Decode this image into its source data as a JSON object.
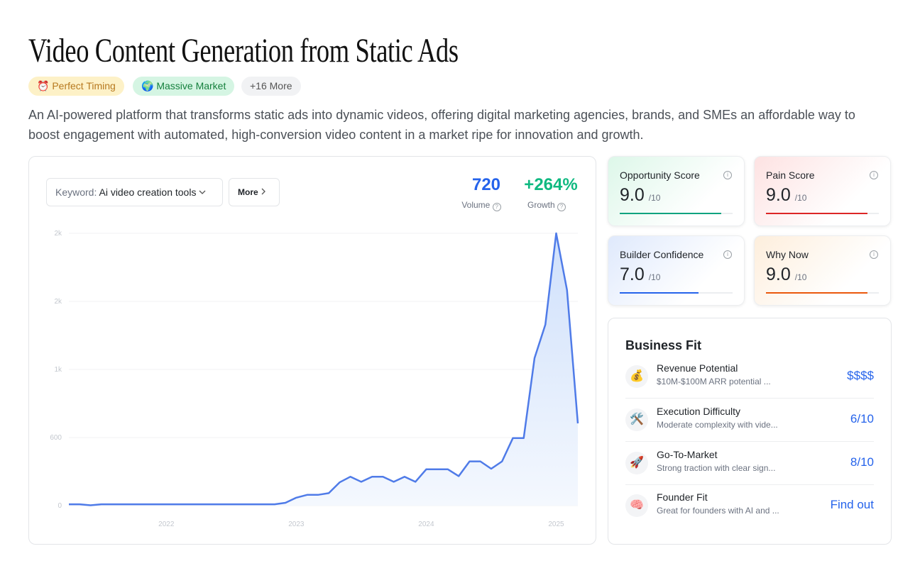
{
  "header": {
    "title": "Video Content Generation from Static Ads",
    "tags": [
      {
        "icon": "⏰",
        "label": "Perfect Timing"
      },
      {
        "icon": "🌍",
        "label": "Massive Market"
      },
      {
        "label": "+16 More"
      }
    ],
    "description": "An AI-powered platform that transforms static ads into dynamic videos, offering digital marketing agencies, brands, and SMEs an affordable way to boost engagement with automated, high-conversion video content in a market ripe for innovation and growth."
  },
  "controls": {
    "keyword_label": "Keyword:",
    "keyword_value": "Ai video creation tools",
    "more_button": "More"
  },
  "metrics": [
    {
      "value": "720",
      "label": "Volume"
    },
    {
      "value": "+264%",
      "label": "Growth"
    }
  ],
  "chart_data": {
    "type": "line",
    "categories": [
      null,
      null,
      null,
      null,
      null,
      null,
      null,
      null,
      null,
      "2022",
      null,
      null,
      null,
      null,
      null,
      null,
      null,
      null,
      null,
      null,
      null,
      "2023",
      null,
      null,
      null,
      null,
      null,
      null,
      null,
      null,
      null,
      null,
      null,
      "2024",
      null,
      null,
      null,
      null,
      null,
      null,
      null,
      null,
      null,
      null,
      null,
      "2025",
      null,
      null
    ],
    "values": [
      12,
      12,
      3,
      12,
      12,
      12,
      12,
      12,
      12,
      12,
      12,
      12,
      12,
      12,
      12,
      12,
      12,
      12,
      12,
      12,
      25,
      70,
      95,
      95,
      110,
      205,
      255,
      210,
      255,
      255,
      210,
      255,
      210,
      320,
      320,
      320,
      260,
      390,
      390,
      325,
      390,
      595,
      595,
      1300,
      1595,
      2400,
      1900,
      725
    ],
    "color": "#4f7be8",
    "ylim": [
      0,
      2400
    ],
    "yticks": [
      0,
      600,
      {
        "value": 1200,
        "label": "1k"
      },
      {
        "value": 1800,
        "label": "2k"
      },
      {
        "value": 2400,
        "label": "2k"
      }
    ],
    "grid": true
  },
  "scores": [
    {
      "name": "Opportunity Score",
      "score": 9,
      "score_label": "9.0",
      "max": 10,
      "max_label": "/10",
      "color": "#10a37f"
    },
    {
      "name": "Pain Score",
      "score": 9,
      "score_label": "9.0",
      "max": 10,
      "max_label": "/10",
      "color": "#dc2626"
    },
    {
      "name": "Builder Confidence",
      "score": 7,
      "score_label": "7.0",
      "max": 10,
      "max_label": "/10",
      "color": "#2563eb"
    },
    {
      "name": "Why Now",
      "score": 9,
      "score_label": "9.0",
      "max": 10,
      "max_label": "/10",
      "color": "#ea580c"
    }
  ],
  "business_fit": {
    "title": "Business Fit",
    "items": [
      {
        "icon": "💰",
        "name": "Revenue Potential",
        "description": "$10M-$100M ARR potential ...",
        "value": "$$$$"
      },
      {
        "icon": "🛠️",
        "name": "Execution Difficulty",
        "description": "Moderate complexity with vide...",
        "value": "6/10"
      },
      {
        "icon": "🚀",
        "name": "Go-To-Market",
        "description": "Strong traction with clear sign...",
        "value": "8/10"
      },
      {
        "icon": "🧠",
        "name": "Founder Fit",
        "description": "Great for founders with AI and ...",
        "value": "Find out"
      }
    ]
  }
}
